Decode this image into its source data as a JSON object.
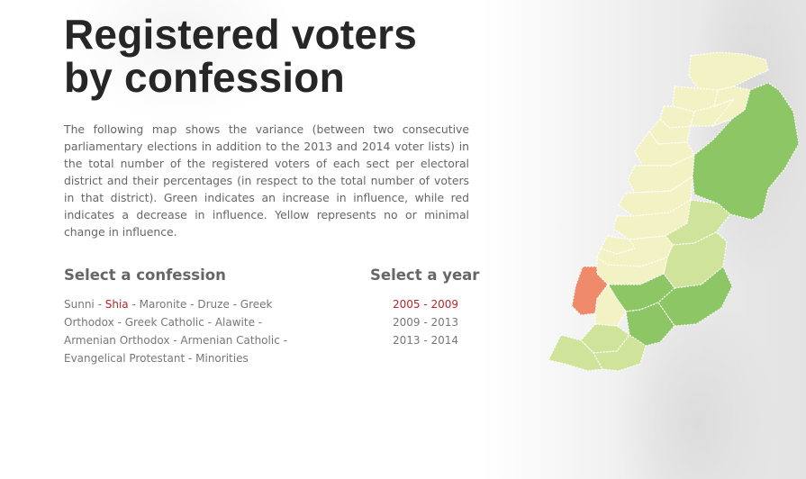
{
  "title": {
    "line1": "Registered voters",
    "line2": "by confession"
  },
  "description": "The following map shows the variance (between two consecutive parliamentary elections in addition to the 2013 and 2014 voter lists) in the total number of the registered voters of each sect per electoral district and their percentages (in respect to the total number of voters in that district). Green indicates an increase in influence, while red indicates a decrease in influence. Yellow represents no or minimal change in influence.",
  "confession_selector": {
    "heading": "Select a confession",
    "separator": " - ",
    "selected": "Shia",
    "items": [
      "Sunni",
      "Shia",
      "Maronite",
      "Druze",
      "Greek Orthodox",
      "Greek Catholic",
      "Alawite",
      "Armenian Orthodox",
      "Armenian Catholic",
      "Evangelical Protestant",
      "Minorities"
    ]
  },
  "year_selector": {
    "heading": "Select a year",
    "selected": "2005 - 2009",
    "items": [
      "2005 - 2009",
      "2009 - 2013",
      "2013 - 2014"
    ]
  },
  "colors": {
    "title": "#262626",
    "body_text": "#666666",
    "active_link": "#b3262c",
    "increase_strong": "#8cc665",
    "increase_mild": "#cfe49a",
    "minimal_change": "#f3f2c4",
    "decrease": "#ef8a6a",
    "relief_shade": "#e0e0e0"
  },
  "map": {
    "legend_semantics": {
      "increase": "green",
      "decrease": "red",
      "no_change": "yellow"
    }
  }
}
